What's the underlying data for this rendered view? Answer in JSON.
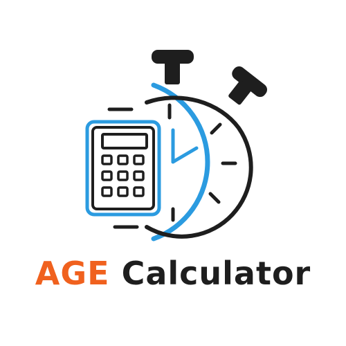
{
  "logo": {
    "icon_name": "stopwatch-calculator-icon",
    "word_primary": "AGE",
    "word_secondary": "Calculator",
    "colors": {
      "accent_orange": "#f0611e",
      "accent_blue": "#2b9be0",
      "ink": "#1e1e1e",
      "background": "#ffffff"
    }
  }
}
